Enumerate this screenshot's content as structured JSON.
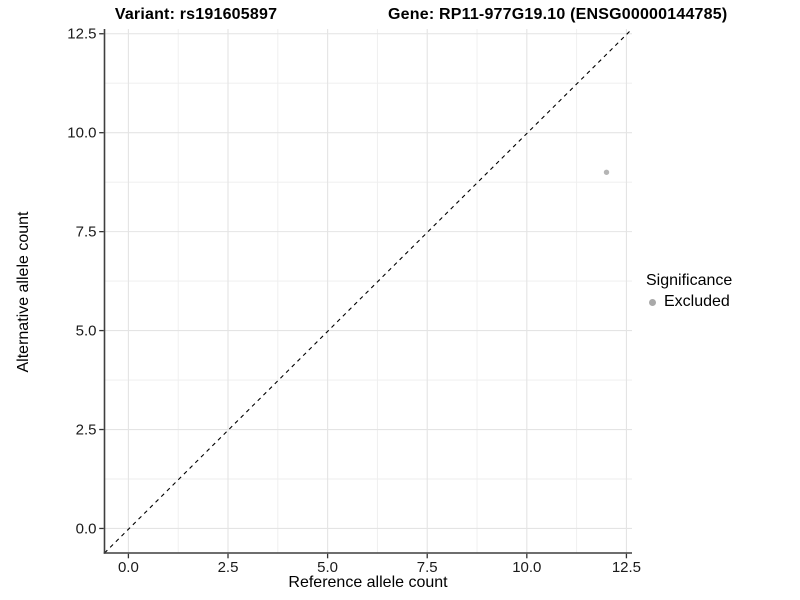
{
  "chart_data": {
    "type": "scatter",
    "titles": {
      "left": "Variant: rs191605897",
      "right": "Gene: RP11-977G19.10 (ENSG00000144785)"
    },
    "xlabel": "Reference allele count",
    "ylabel": "Alternative allele count",
    "x": {
      "tick_labels": [
        "0.0",
        "2.5",
        "5.0",
        "7.5",
        "10.0",
        "12.5"
      ],
      "tick_values": [
        0,
        2.5,
        5,
        7.5,
        10,
        12.5
      ],
      "minor_ticks": [
        1.25,
        3.75,
        6.25,
        8.75,
        11.25
      ],
      "lim": [
        -0.6,
        12.64
      ]
    },
    "y": {
      "tick_labels": [
        "0.0",
        "2.5",
        "5.0",
        "7.5",
        "10.0",
        "12.5"
      ],
      "tick_values": [
        0,
        2.5,
        5,
        7.5,
        10,
        12.5
      ],
      "minor_ticks": [
        1.25,
        3.75,
        6.25,
        8.75,
        11.25
      ],
      "lim": [
        -0.62,
        12.62
      ]
    },
    "grid": "major+minor",
    "series": [
      {
        "name": "Excluded",
        "marker": "circle",
        "color": "#b5b5b5",
        "points": [
          {
            "x": 12,
            "y": 9
          }
        ]
      }
    ],
    "reference_line": {
      "kind": "identity y=x",
      "style": "dashed",
      "color": "#000000"
    },
    "legend": {
      "title": "Significance",
      "position": "right-middle",
      "items": [
        {
          "label": "Excluded",
          "color": "#a9a9a9",
          "marker": "circle"
        }
      ]
    },
    "palette": {
      "background": "#ffffff",
      "grid_major": "#e4e4e4",
      "grid_minor": "#eeeeee",
      "axis_line": "#3f3f3f",
      "tick_mark": "#333333",
      "tick_text": "#1a1a1a",
      "text": "#000000"
    }
  }
}
